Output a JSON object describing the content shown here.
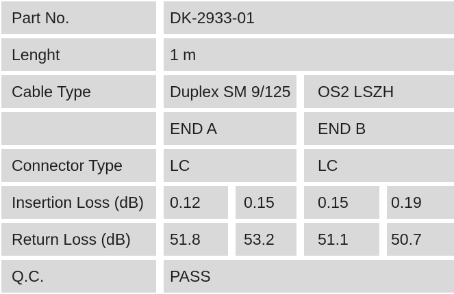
{
  "colors": {
    "cell_bg": "#d9d9d9",
    "gap_bg": "#ffffff",
    "text": "#1e1e1e"
  },
  "table": {
    "rows": [
      {
        "label": "Part No.",
        "values": [
          "DK-2933-01"
        ]
      },
      {
        "label": "Lenght",
        "values": [
          "1 m"
        ]
      },
      {
        "label": "Cable Type",
        "values": [
          "Duplex SM 9/125",
          "OS2 LSZH"
        ]
      },
      {
        "label": "",
        "values": [
          "END A",
          "END B"
        ]
      },
      {
        "label": "Connector Type",
        "values": [
          "LC",
          "LC"
        ]
      },
      {
        "label": "Insertion Loss (dB)",
        "values": [
          "0.12",
          "0.15",
          "0.15",
          "0.19"
        ]
      },
      {
        "label": "Return Loss (dB)",
        "values": [
          "51.8",
          "53.2",
          "51.1",
          "50.7"
        ]
      },
      {
        "label": "Q.C.",
        "values": [
          "PASS"
        ]
      }
    ]
  }
}
